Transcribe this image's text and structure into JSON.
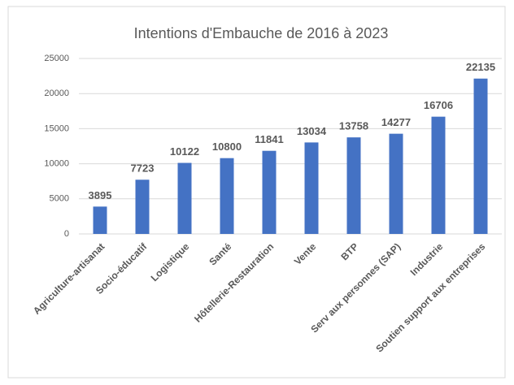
{
  "chart_data": {
    "type": "bar",
    "title": "Intentions d'Embauche de 2016 à 2023",
    "categories": [
      "Agriculture-artisanat",
      "Socio-éducatif",
      "Logistique",
      "Santé",
      "Hôtellerie-Restauration",
      "Vente",
      "BTP",
      "Serv aux personnes (SAP)",
      "Industrie",
      "Soutien support aux entreprises"
    ],
    "values": [
      3895,
      7723,
      10122,
      10800,
      11841,
      13034,
      13758,
      14277,
      16706,
      22135
    ],
    "color": "#4472c4",
    "ylim": [
      0,
      25000
    ],
    "yticks": [
      0,
      5000,
      10000,
      15000,
      20000,
      25000
    ],
    "grid": true
  }
}
